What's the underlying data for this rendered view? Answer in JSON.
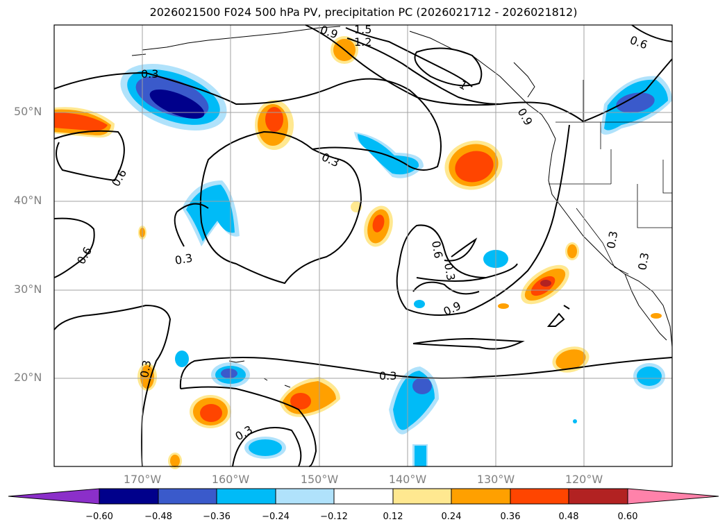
{
  "title": "2026021500 F024 500 hPa PV, precipitation PC (2026021712 - 2026021812)",
  "map": {
    "lat_labels": [
      "50°N",
      "40°N",
      "30°N",
      "20°N"
    ],
    "lon_labels": [
      "170°W",
      "160°W",
      "150°W",
      "140°W",
      "130°W",
      "120°W"
    ],
    "contour_labels": [
      "0.3",
      "0.3",
      "0.3",
      "0.3",
      "0.3",
      "0.3",
      "0.3",
      "0.3",
      "0.3",
      "0.6",
      "0.6",
      "0.6",
      "0.6",
      "0.9",
      "0.9",
      "1.2",
      "1.5",
      "0.9",
      "1"
    ]
  },
  "colorbar": {
    "ticks": [
      "−0.60",
      "−0.48",
      "−0.36",
      "−0.24",
      "−0.12",
      "0.12",
      "0.24",
      "0.36",
      "0.48",
      "0.60"
    ],
    "colors": [
      "#8b2fc9",
      "#00008b",
      "#3a5acb",
      "#00bbf7",
      "#b0e2fb",
      "#ffffff",
      "#ffe890",
      "#ffa000",
      "#ff4500",
      "#b22222",
      "#ff82aa"
    ]
  }
}
